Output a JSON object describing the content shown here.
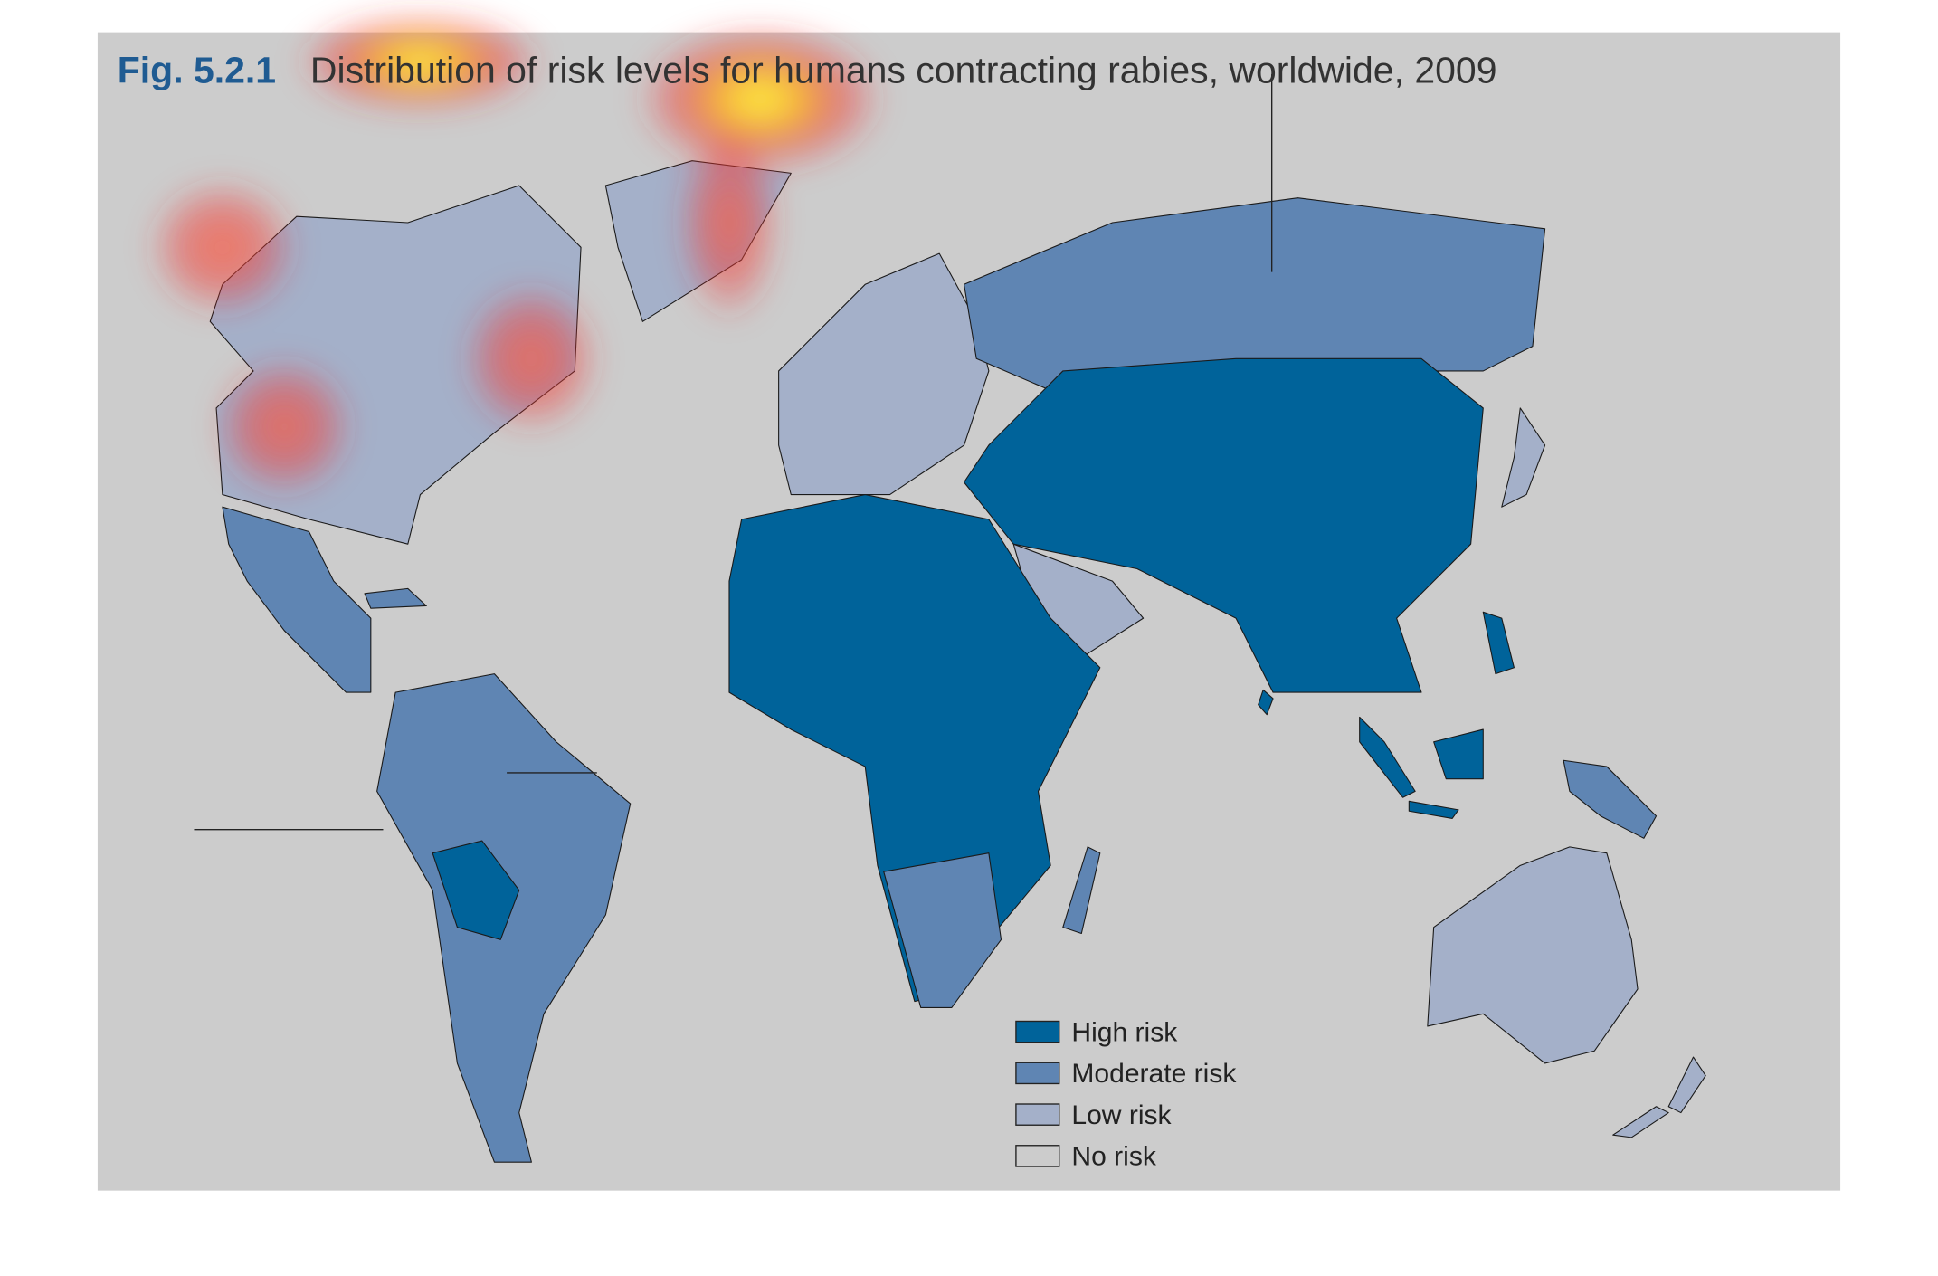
{
  "figure": {
    "label": "Fig. 5.2.1",
    "title": "Distribution of risk levels for humans contracting rabies, worldwide, 2009"
  },
  "legend": [
    {
      "label": "High risk",
      "color": "#00639a"
    },
    {
      "label": "Moderate risk",
      "color": "#5f85b3"
    },
    {
      "label": "Low risk",
      "color": "#a4b0c9"
    },
    {
      "label": "No risk",
      "color": "#cccccc"
    }
  ]
}
